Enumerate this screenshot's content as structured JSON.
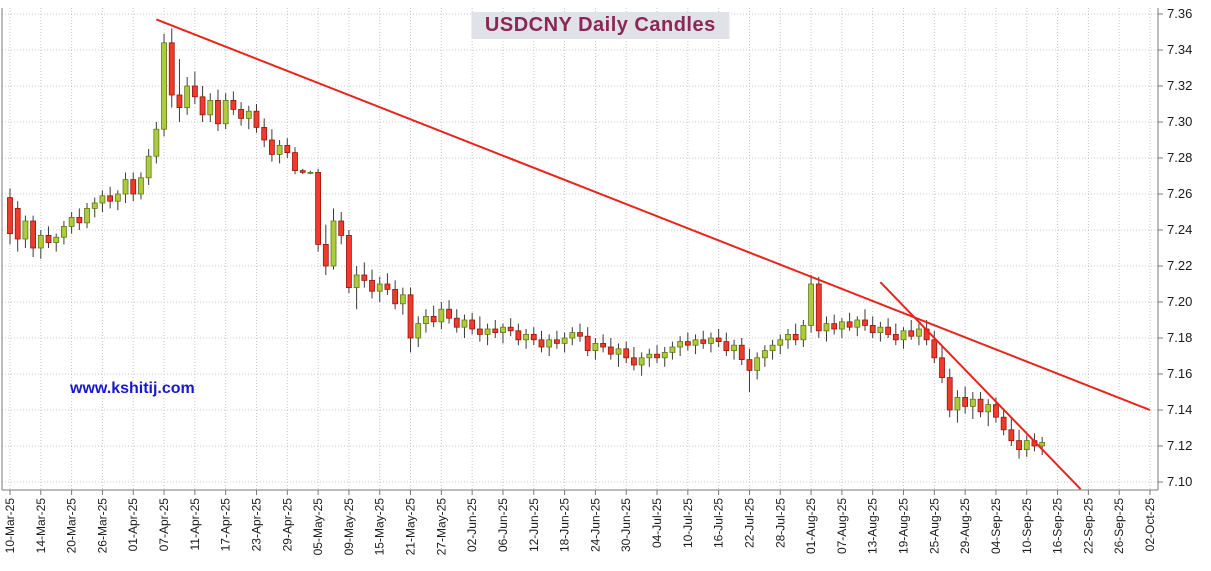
{
  "chart": {
    "title": "USDCNY Daily Candles",
    "watermark": "www.kshitij.com"
  },
  "chart_data": {
    "type": "candlestick",
    "title": "USDCNY Daily Candles",
    "instrument_pair": "USDCNY",
    "timeframe": "Daily",
    "ylim": [
      7.1,
      7.36
    ],
    "y_tick_step": 0.02,
    "y_tick_labels": [
      "7.36",
      "7.34",
      "7.32",
      "7.30",
      "7.28",
      "7.26",
      "7.24",
      "7.22",
      "7.20",
      "7.18",
      "7.16",
      "7.14",
      "7.12",
      "7.10"
    ],
    "x_tick_labels": [
      "10-Mar-25",
      "14-Mar-25",
      "20-Mar-25",
      "26-Mar-25",
      "01-Apr-25",
      "07-Apr-25",
      "11-Apr-25",
      "17-Apr-25",
      "23-Apr-25",
      "29-Apr-25",
      "05-May-25",
      "09-May-25",
      "15-May-25",
      "21-May-25",
      "27-May-25",
      "02-Jun-25",
      "06-Jun-25",
      "12-Jun-25",
      "18-Jun-25",
      "24-Jun-25",
      "30-Jun-25",
      "04-Jul-25",
      "10-Jul-25",
      "16-Jul-25",
      "22-Jul-25",
      "28-Jul-25",
      "01-Aug-25",
      "07-Aug-25",
      "13-Aug-25",
      "19-Aug-25",
      "25-Aug-25",
      "29-Aug-25",
      "04-Sep-25",
      "10-Sep-25",
      "16-Sep-25",
      "22-Sep-25",
      "26-Sep-25",
      "02-Oct-25"
    ],
    "x_tick_slots": [
      0,
      4,
      8,
      12,
      16,
      20,
      24,
      28,
      32,
      36,
      40,
      44,
      48,
      52,
      56,
      60,
      64,
      68,
      72,
      76,
      80,
      84,
      88,
      92,
      96,
      100,
      104,
      108,
      112,
      116,
      120,
      124,
      128,
      132,
      136,
      140,
      144,
      148
    ],
    "total_slots": 149,
    "first_candle_slot": 0,
    "grid": true,
    "legend_position": "none",
    "candles_ohlc": [
      [
        7.258,
        7.263,
        7.232,
        7.238
      ],
      [
        7.252,
        7.256,
        7.228,
        7.235
      ],
      [
        7.235,
        7.248,
        7.23,
        7.245
      ],
      [
        7.245,
        7.248,
        7.225,
        7.23
      ],
      [
        7.23,
        7.24,
        7.224,
        7.237
      ],
      [
        7.237,
        7.242,
        7.23,
        7.233
      ],
      [
        7.233,
        7.238,
        7.228,
        7.236
      ],
      [
        7.236,
        7.245,
        7.232,
        7.242
      ],
      [
        7.242,
        7.25,
        7.238,
        7.247
      ],
      [
        7.247,
        7.252,
        7.24,
        7.244
      ],
      [
        7.244,
        7.255,
        7.241,
        7.252
      ],
      [
        7.252,
        7.258,
        7.247,
        7.255
      ],
      [
        7.255,
        7.262,
        7.25,
        7.259
      ],
      [
        7.259,
        7.264,
        7.252,
        7.256
      ],
      [
        7.256,
        7.262,
        7.251,
        7.26
      ],
      [
        7.26,
        7.272,
        7.255,
        7.268
      ],
      [
        7.268,
        7.272,
        7.256,
        7.26
      ],
      [
        7.26,
        7.272,
        7.257,
        7.269
      ],
      [
        7.269,
        7.285,
        7.265,
        7.281
      ],
      [
        7.281,
        7.3,
        7.277,
        7.296
      ],
      [
        7.296,
        7.349,
        7.292,
        7.344
      ],
      [
        7.344,
        7.352,
        7.308,
        7.315
      ],
      [
        7.315,
        7.335,
        7.3,
        7.308
      ],
      [
        7.308,
        7.325,
        7.304,
        7.32
      ],
      [
        7.32,
        7.328,
        7.31,
        7.314
      ],
      [
        7.314,
        7.32,
        7.3,
        7.304
      ],
      [
        7.304,
        7.316,
        7.3,
        7.312
      ],
      [
        7.312,
        7.318,
        7.295,
        7.299
      ],
      [
        7.299,
        7.316,
        7.296,
        7.312
      ],
      [
        7.312,
        7.317,
        7.304,
        7.307
      ],
      [
        7.307,
        7.311,
        7.298,
        7.302
      ],
      [
        7.302,
        7.309,
        7.296,
        7.306
      ],
      [
        7.306,
        7.31,
        7.294,
        7.297
      ],
      [
        7.297,
        7.302,
        7.286,
        7.29
      ],
      [
        7.29,
        7.296,
        7.278,
        7.282
      ],
      [
        7.282,
        7.29,
        7.277,
        7.287
      ],
      [
        7.287,
        7.291,
        7.28,
        7.283
      ],
      [
        7.283,
        7.286,
        7.271,
        7.273
      ],
      [
        7.273,
        7.274,
        7.271,
        7.272
      ],
      [
        7.272,
        7.273,
        7.271,
        7.272
      ],
      [
        7.272,
        7.274,
        7.228,
        7.232
      ],
      [
        7.232,
        7.243,
        7.215,
        7.22
      ],
      [
        7.22,
        7.252,
        7.218,
        7.245
      ],
      [
        7.245,
        7.25,
        7.232,
        7.237
      ],
      [
        7.237,
        7.24,
        7.205,
        7.208
      ],
      [
        7.208,
        7.22,
        7.196,
        7.215
      ],
      [
        7.215,
        7.222,
        7.208,
        7.212
      ],
      [
        7.212,
        7.218,
        7.202,
        7.206
      ],
      [
        7.206,
        7.214,
        7.2,
        7.21
      ],
      [
        7.21,
        7.216,
        7.204,
        7.207
      ],
      [
        7.207,
        7.212,
        7.196,
        7.199
      ],
      [
        7.199,
        7.208,
        7.193,
        7.204
      ],
      [
        7.204,
        7.208,
        7.172,
        7.18
      ],
      [
        7.18,
        7.192,
        7.175,
        7.188
      ],
      [
        7.188,
        7.196,
        7.183,
        7.192
      ],
      [
        7.192,
        7.198,
        7.186,
        7.189
      ],
      [
        7.189,
        7.2,
        7.185,
        7.196
      ],
      [
        7.196,
        7.201,
        7.188,
        7.191
      ],
      [
        7.191,
        7.196,
        7.183,
        7.186
      ],
      [
        7.186,
        7.193,
        7.18,
        7.19
      ],
      [
        7.19,
        7.194,
        7.182,
        7.185
      ],
      [
        7.185,
        7.192,
        7.178,
        7.182
      ],
      [
        7.182,
        7.188,
        7.176,
        7.185
      ],
      [
        7.185,
        7.19,
        7.18,
        7.183
      ],
      [
        7.183,
        7.188,
        7.177,
        7.186
      ],
      [
        7.186,
        7.191,
        7.181,
        7.184
      ],
      [
        7.184,
        7.188,
        7.176,
        7.179
      ],
      [
        7.179,
        7.185,
        7.174,
        7.182
      ],
      [
        7.182,
        7.186,
        7.176,
        7.179
      ],
      [
        7.179,
        7.184,
        7.172,
        7.175
      ],
      [
        7.175,
        7.182,
        7.17,
        7.179
      ],
      [
        7.179,
        7.184,
        7.174,
        7.177
      ],
      [
        7.177,
        7.183,
        7.172,
        7.18
      ],
      [
        7.18,
        7.186,
        7.176,
        7.183
      ],
      [
        7.183,
        7.188,
        7.178,
        7.181
      ],
      [
        7.181,
        7.186,
        7.17,
        7.173
      ],
      [
        7.173,
        7.18,
        7.168,
        7.177
      ],
      [
        7.177,
        7.182,
        7.172,
        7.175
      ],
      [
        7.175,
        7.18,
        7.168,
        7.171
      ],
      [
        7.171,
        7.177,
        7.164,
        7.174
      ],
      [
        7.174,
        7.178,
        7.166,
        7.169
      ],
      [
        7.169,
        7.175,
        7.162,
        7.165
      ],
      [
        7.165,
        7.172,
        7.159,
        7.169
      ],
      [
        7.169,
        7.174,
        7.164,
        7.171
      ],
      [
        7.171,
        7.176,
        7.166,
        7.169
      ],
      [
        7.169,
        7.175,
        7.164,
        7.172
      ],
      [
        7.172,
        7.178,
        7.168,
        7.175
      ],
      [
        7.175,
        7.181,
        7.17,
        7.178
      ],
      [
        7.178,
        7.183,
        7.173,
        7.176
      ],
      [
        7.176,
        7.182,
        7.171,
        7.179
      ],
      [
        7.179,
        7.184,
        7.174,
        7.177
      ],
      [
        7.177,
        7.183,
        7.172,
        7.18
      ],
      [
        7.18,
        7.185,
        7.175,
        7.178
      ],
      [
        7.178,
        7.183,
        7.17,
        7.173
      ],
      [
        7.173,
        7.179,
        7.168,
        7.176
      ],
      [
        7.176,
        7.18,
        7.165,
        7.168
      ],
      [
        7.168,
        7.174,
        7.15,
        7.162
      ],
      [
        7.162,
        7.172,
        7.157,
        7.169
      ],
      [
        7.169,
        7.176,
        7.164,
        7.173
      ],
      [
        7.173,
        7.179,
        7.168,
        7.176
      ],
      [
        7.176,
        7.182,
        7.171,
        7.179
      ],
      [
        7.179,
        7.185,
        7.174,
        7.182
      ],
      [
        7.182,
        7.188,
        7.176,
        7.179
      ],
      [
        7.179,
        7.19,
        7.175,
        7.187
      ],
      [
        7.187,
        7.215,
        7.183,
        7.21
      ],
      [
        7.21,
        7.214,
        7.18,
        7.184
      ],
      [
        7.184,
        7.192,
        7.178,
        7.188
      ],
      [
        7.188,
        7.193,
        7.182,
        7.185
      ],
      [
        7.185,
        7.191,
        7.18,
        7.189
      ],
      [
        7.189,
        7.194,
        7.184,
        7.186
      ],
      [
        7.186,
        7.192,
        7.181,
        7.19
      ],
      [
        7.19,
        7.196,
        7.184,
        7.187
      ],
      [
        7.187,
        7.192,
        7.18,
        7.183
      ],
      [
        7.183,
        7.189,
        7.178,
        7.186
      ],
      [
        7.186,
        7.191,
        7.18,
        7.182
      ],
      [
        7.182,
        7.188,
        7.176,
        7.179
      ],
      [
        7.179,
        7.186,
        7.174,
        7.184
      ],
      [
        7.184,
        7.19,
        7.179,
        7.181
      ],
      [
        7.181,
        7.188,
        7.176,
        7.185
      ],
      [
        7.185,
        7.19,
        7.176,
        7.179
      ],
      [
        7.179,
        7.184,
        7.166,
        7.169
      ],
      [
        7.169,
        7.175,
        7.155,
        7.158
      ],
      [
        7.158,
        7.163,
        7.136,
        7.14
      ],
      [
        7.14,
        7.151,
        7.133,
        7.147
      ],
      [
        7.147,
        7.153,
        7.138,
        7.142
      ],
      [
        7.142,
        7.15,
        7.135,
        7.146
      ],
      [
        7.146,
        7.15,
        7.136,
        7.139
      ],
      [
        7.139,
        7.146,
        7.131,
        7.143
      ],
      [
        7.143,
        7.147,
        7.133,
        7.136
      ],
      [
        7.136,
        7.141,
        7.126,
        7.129
      ],
      [
        7.129,
        7.135,
        7.12,
        7.123
      ],
      [
        7.123,
        7.129,
        7.113,
        7.118
      ],
      [
        7.118,
        7.126,
        7.114,
        7.123
      ],
      [
        7.123,
        7.127,
        7.117,
        7.12
      ],
      [
        7.12,
        7.125,
        7.115,
        7.122
      ]
    ],
    "trendlines": [
      {
        "name": "long-downtrend-line",
        "from_slot": 19,
        "from_price": 7.357,
        "to_slot": 148,
        "to_price": 7.14
      },
      {
        "name": "steep-downtrend-line",
        "from_slot": 113,
        "from_price": 7.211,
        "to_slot": 139,
        "to_price": 7.096
      }
    ],
    "colors": {
      "up_fill": "#aecb3d",
      "up_stroke": "#5d7a10",
      "down_fill": "#ee3b2e",
      "down_stroke": "#97160c",
      "wick": "#3a3a3a",
      "trendline": "#e8241c",
      "grid": "#c8c8c8",
      "axis": "#7a7a7a",
      "tick_text": "#1a1a1a",
      "title_text": "#8b2757",
      "title_bg": "#e1e1e8",
      "watermark_text": "#1717cf",
      "background": "#ffffff"
    }
  }
}
